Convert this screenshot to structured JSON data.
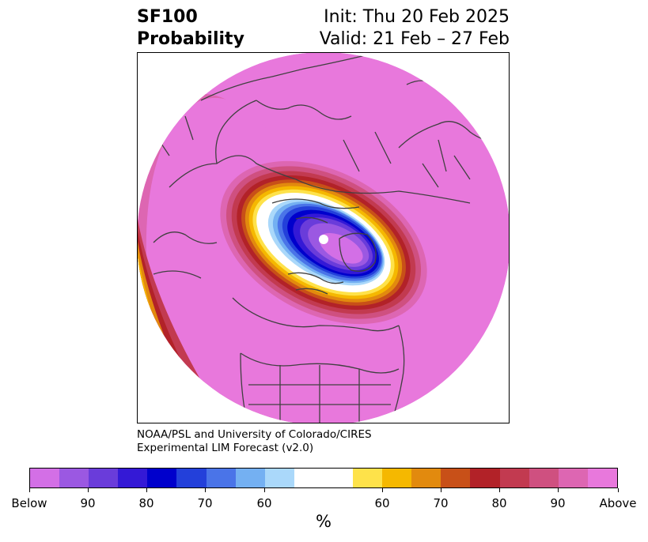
{
  "title": {
    "left_line1": "SF100",
    "left_line2": "Probability",
    "right_line1": "Init: Thu 20 Feb 2025",
    "right_line2": "Valid: 21 Feb – 27 Feb"
  },
  "credit": {
    "line1": "NOAA/PSL and University of Colorado/CIRES",
    "line2": "Experimental LIM Forecast (v2.0)"
  },
  "colorbar": {
    "unit": "%",
    "colors": [
      "#d36fe6",
      "#9b58e2",
      "#6a3cda",
      "#3419d6",
      "#0000cc",
      "#2340da",
      "#4a74e8",
      "#74b0f2",
      "#aad8fa",
      "#ffffff",
      "#ffffff",
      "#fee24a",
      "#f5b800",
      "#e28a0e",
      "#c85018",
      "#b22228",
      "#c23a50",
      "#cf5080",
      "#dd66b2",
      "#e878dc"
    ],
    "tick_labels": [
      "Below",
      "90",
      "80",
      "70",
      "60",
      "60",
      "70",
      "80",
      "90",
      "Above"
    ]
  },
  "map": {
    "projection": "north-polar-stereographic",
    "background_color": "#e878dc",
    "coastline_color": "#404040"
  }
}
